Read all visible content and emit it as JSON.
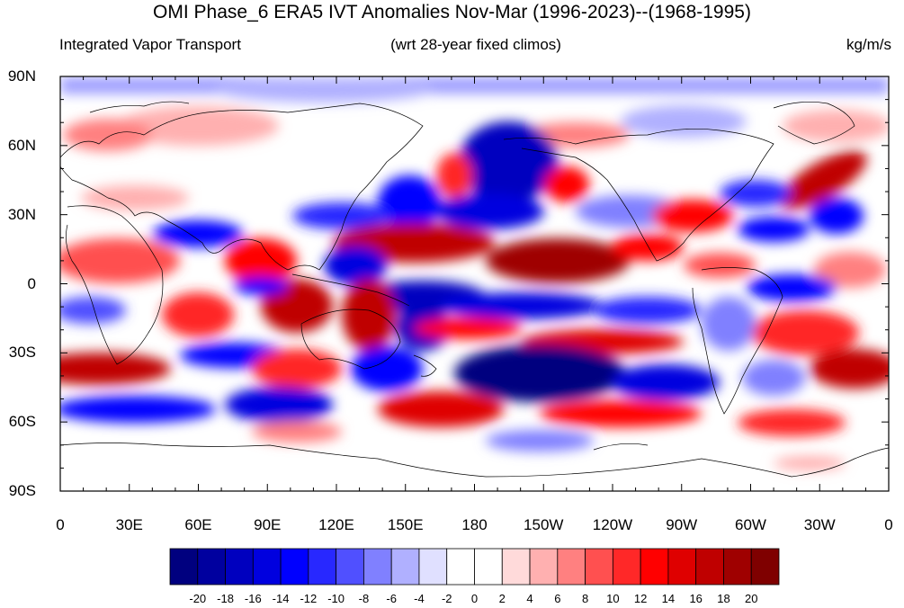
{
  "title": "OMI Phase_6 ERA5 IVT Anomalies Nov-Mar (1996-2023)--(1968-1995)",
  "left_string": "Integrated Vapor Transport",
  "center_string": "(wrt 28-year fixed climos)",
  "right_string": "kg/m/s",
  "map": {
    "projection": "cylindrical equidistant",
    "lon_range": [
      0,
      360
    ],
    "lat_range": [
      -90,
      90
    ],
    "lat_labels": [
      "90N",
      "60N",
      "30N",
      "0",
      "30S",
      "60S",
      "90S"
    ],
    "lon_labels": [
      "0",
      "30E",
      "60E",
      "90E",
      "120E",
      "150E",
      "180",
      "150W",
      "120W",
      "90W",
      "60W",
      "30W",
      "0"
    ]
  },
  "colorbar": {
    "levels": [
      "-20",
      "-18",
      "-16",
      "-14",
      "-12",
      "-10",
      "-8",
      "-6",
      "-4",
      "-2",
      "0",
      "2",
      "4",
      "6",
      "8",
      "10",
      "12",
      "14",
      "16",
      "18",
      "20"
    ],
    "colors": [
      "#00007f",
      "#00009f",
      "#0000bf",
      "#0000df",
      "#0000ff",
      "#2828ff",
      "#5050ff",
      "#8080ff",
      "#b0b0ff",
      "#e0e0ff",
      "#ffffff",
      "#ffffff",
      "#ffdada",
      "#ffb0b0",
      "#ff8080",
      "#ff5050",
      "#ff2828",
      "#ff0000",
      "#df0000",
      "#bf0000",
      "#9f0000",
      "#7f0000"
    ]
  }
}
